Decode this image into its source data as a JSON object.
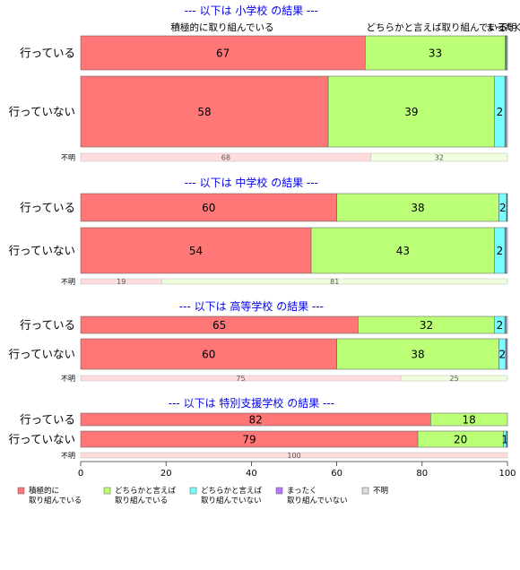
{
  "chart_data": {
    "type": "bar",
    "orientation": "horizontal",
    "stacked": true,
    "xlim": [
      0,
      100
    ],
    "x_ticks": [
      0,
      20,
      40,
      60,
      80,
      100
    ],
    "grid": false,
    "legend_placement": "bottom",
    "top_labels": [
      "積極的に取り組んでいる",
      "どちらかと言えば取り組んでいる",
      "まったく",
      "不明"
    ],
    "categories": [
      {
        "key": "c1",
        "lines": [
          "積極的に",
          "取り組んでいる"
        ],
        "color": "#ff7777"
      },
      {
        "key": "c2",
        "lines": [
          "どちらかと言えば",
          "取り組んでいる"
        ],
        "color": "#bbff77"
      },
      {
        "key": "c3",
        "lines": [
          "どちらかと言えば",
          "取り組んでいない"
        ],
        "color": "#77ffff"
      },
      {
        "key": "c4",
        "lines": [
          "まったく",
          "取り組んでいない"
        ],
        "color": "#bb77ff"
      },
      {
        "key": "c5",
        "lines": [
          "不明"
        ],
        "color": "#dddddd"
      }
    ],
    "panels": [
      {
        "title": "--- 以下は 小学校 の結果 ---",
        "rows": [
          {
            "label": "行っている",
            "values": [
              67,
              33,
              0.2,
              0.1,
              0.2
            ],
            "labels": [
              "67",
              "33",
              "",
              "",
              ""
            ]
          },
          {
            "label": "行っていない",
            "values": [
              58,
              39,
              2.4,
              0.3,
              0.3
            ],
            "labels": [
              "58",
              "39",
              "2",
              "",
              ""
            ]
          },
          {
            "label": "不明",
            "values": [
              68,
              32,
              0,
              0,
              0
            ],
            "labels": [
              "68",
              "32",
              "",
              "",
              ""
            ],
            "pale": true
          }
        ]
      },
      {
        "title": "--- 以下は 中学校 の結果 ---",
        "rows": [
          {
            "label": "行っている",
            "values": [
              60,
              38,
              1.8,
              0.1,
              0.1
            ],
            "labels": [
              "60",
              "38",
              "2",
              "",
              ""
            ]
          },
          {
            "label": "行っていない",
            "values": [
              54,
              43,
              2.4,
              0.3,
              0.3
            ],
            "labels": [
              "54",
              "43",
              "2",
              "",
              ""
            ]
          },
          {
            "label": "不明",
            "values": [
              19,
              81,
              0,
              0,
              0
            ],
            "labels": [
              "19",
              "81",
              "",
              "",
              ""
            ],
            "pale": true
          }
        ]
      },
      {
        "title": "--- 以下は 高等学校 の結果 ---",
        "rows": [
          {
            "label": "行っている",
            "values": [
              65,
              32,
              2.4,
              0.3,
              0.3
            ],
            "labels": [
              "65",
              "32",
              "2",
              "",
              ""
            ]
          },
          {
            "label": "行っていない",
            "values": [
              60,
              38,
              1.6,
              0.2,
              0.2
            ],
            "labels": [
              "60",
              "38",
              "2",
              "",
              ""
            ]
          },
          {
            "label": "不明",
            "values": [
              75,
              25,
              0,
              0,
              0
            ],
            "labels": [
              "75",
              "25",
              "",
              "",
              ""
            ],
            "pale": true
          }
        ]
      },
      {
        "title": "--- 以下は 特別支援学校 の結果 ---",
        "rows": [
          {
            "label": "行っている",
            "values": [
              82,
              18,
              0,
              0,
              0
            ],
            "labels": [
              "82",
              "18",
              "",
              "",
              ""
            ]
          },
          {
            "label": "行っていない",
            "values": [
              79,
              20,
              0.8,
              0.1,
              0.1
            ],
            "labels": [
              "79",
              "20",
              "1",
              "",
              ""
            ]
          },
          {
            "label": "不明",
            "values": [
              100,
              0,
              0,
              0,
              0
            ],
            "labels": [
              "100",
              "",
              "",
              "",
              ""
            ],
            "pale": true
          }
        ]
      }
    ]
  }
}
